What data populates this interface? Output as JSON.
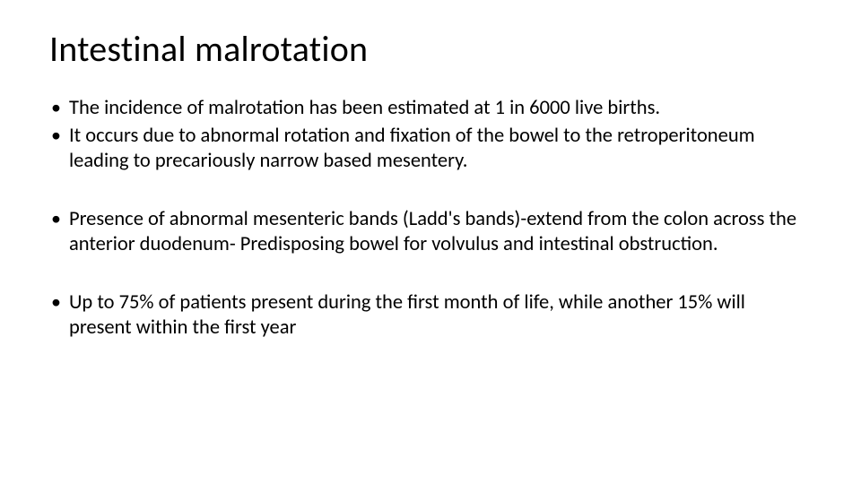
{
  "slide": {
    "title": "Intestinal malrotation",
    "title_fontsize": 40,
    "title_color": "#000000",
    "body_fontsize": 22.5,
    "body_color": "#000000",
    "background_color": "#ffffff",
    "bullets": [
      "The incidence of malrotation has been estimated at 1 in 6000 live births.",
      "It occurs due to abnormal rotation and fixation of the bowel to the retroperitoneum leading to precariously narrow based mesentery.",
      "Presence of abnormal mesenteric bands (Ladd's bands)-extend from the colon across the anterior duodenum- Predisposing bowel for volvulus and intestinal obstruction.",
      "Up to 75% of patients present during the first month of life, while another 15% will present within the first year"
    ],
    "bullet_groups": [
      [
        0,
        1
      ],
      [
        2
      ],
      [
        3
      ]
    ]
  }
}
